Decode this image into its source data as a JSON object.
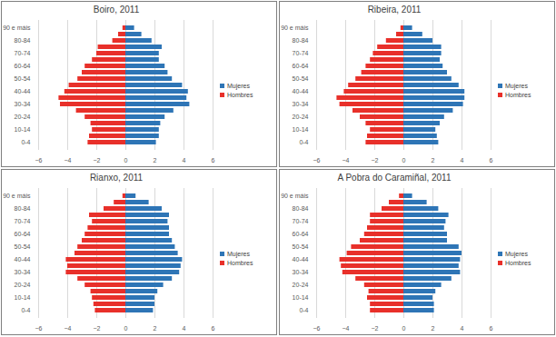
{
  "chart_data": [
    {
      "type": "bar",
      "title": "Boiro, 2011",
      "orientation": "horizontal",
      "grid": true,
      "legend": "right",
      "categories": [
        "0-4",
        null,
        "10-14",
        null,
        "20-24",
        null,
        "30-34",
        null,
        "40-44",
        null,
        "50-54",
        null,
        "60-64",
        null,
        "70-74",
        null,
        "80-84",
        null,
        "90 e máis"
      ],
      "series": [
        {
          "name": "Mujeres",
          "color": "#2e75b6",
          "values": [
            2.1,
            2.3,
            2.3,
            2.4,
            2.7,
            3.3,
            4.4,
            4.2,
            4.3,
            3.9,
            3.2,
            2.9,
            2.7,
            2.3,
            2.3,
            2.5,
            1.8,
            1.1,
            0.6
          ]
        },
        {
          "name": "Hombres",
          "color": "#e8302a",
          "values": [
            -2.6,
            -2.5,
            -2.3,
            -2.4,
            -2.8,
            -3.4,
            -4.5,
            -4.6,
            -4.2,
            -3.9,
            -3.3,
            -3.0,
            -2.8,
            -2.3,
            -2.0,
            -1.9,
            -0.9,
            -0.5,
            -0.2
          ]
        }
      ],
      "xlim": [
        -6,
        6
      ],
      "xticks": [
        -6,
        -4,
        -2,
        0,
        2,
        4,
        6
      ]
    },
    {
      "type": "bar",
      "title": "Ribeira, 2011",
      "orientation": "horizontal",
      "grid": true,
      "legend": "right",
      "categories": [
        "0-4",
        null,
        "10-14",
        null,
        "20-24",
        null,
        "30-34",
        null,
        "40-44",
        null,
        "50-54",
        null,
        "60-64",
        null,
        "70-74",
        null,
        "80-84",
        null,
        "90 e máis"
      ],
      "series": [
        {
          "name": "Mujeres",
          "color": "#2e75b6",
          "values": [
            2.4,
            2.3,
            2.2,
            2.5,
            2.8,
            3.4,
            4.1,
            4.2,
            4.2,
            3.8,
            3.3,
            3.0,
            2.7,
            2.5,
            2.6,
            2.6,
            2.0,
            1.3,
            0.6
          ]
        },
        {
          "name": "Hombres",
          "color": "#e8302a",
          "values": [
            -2.6,
            -2.5,
            -2.3,
            -2.6,
            -3.0,
            -3.5,
            -4.4,
            -4.6,
            -4.1,
            -3.8,
            -3.3,
            -2.9,
            -2.6,
            -2.3,
            -2.1,
            -1.8,
            -1.2,
            -0.5,
            -0.2
          ]
        }
      ],
      "xlim": [
        -6,
        6
      ],
      "xticks": [
        -6,
        -4,
        -2,
        0,
        2,
        4,
        6
      ]
    },
    {
      "type": "bar",
      "title": "Rianxo, 2011",
      "orientation": "horizontal",
      "grid": true,
      "legend": "right",
      "categories": [
        "0-4",
        null,
        "10-14",
        null,
        "20-24",
        null,
        "30-34",
        null,
        "40-44",
        null,
        "50-54",
        null,
        "60-64",
        null,
        "70-74",
        null,
        "80-84",
        null,
        "90 e máis"
      ],
      "series": [
        {
          "name": "Mujeres",
          "color": "#2e75b6",
          "values": [
            1.9,
            2.0,
            2.0,
            2.2,
            2.6,
            3.2,
            3.7,
            3.8,
            3.9,
            3.6,
            3.4,
            3.2,
            3.0,
            3.0,
            2.9,
            3.0,
            2.5,
            1.6,
            0.7
          ]
        },
        {
          "name": "Hombres",
          "color": "#e8302a",
          "values": [
            -2.1,
            -2.2,
            -2.3,
            -2.4,
            -2.8,
            -3.3,
            -4.1,
            -4.0,
            -4.1,
            -3.5,
            -3.3,
            -3.0,
            -2.8,
            -2.6,
            -2.3,
            -2.5,
            -1.5,
            -0.8,
            -0.2
          ]
        }
      ],
      "xlim": [
        -6,
        6
      ],
      "xticks": [
        -6,
        -4,
        -2,
        0,
        2,
        4,
        6
      ]
    },
    {
      "type": "bar",
      "title": "A Pobra do Caramiñal, 2011",
      "orientation": "horizontal",
      "grid": true,
      "legend": "right",
      "categories": [
        "0-4",
        null,
        "10-14",
        null,
        "20-24",
        null,
        "30-34",
        null,
        "40-44",
        null,
        "50-54",
        null,
        "60-64",
        null,
        "70-74",
        null,
        "80-84",
        null,
        "90 e máis"
      ],
      "series": [
        {
          "name": "Mujeres",
          "color": "#2e75b6",
          "values": [
            2.1,
            2.1,
            2.0,
            2.2,
            2.6,
            3.3,
            3.9,
            3.8,
            3.9,
            4.0,
            3.8,
            3.0,
            3.0,
            2.8,
            2.9,
            3.1,
            2.4,
            1.6,
            0.6
          ]
        },
        {
          "name": "Hombres",
          "color": "#e8302a",
          "values": [
            -2.3,
            -2.3,
            -2.5,
            -2.4,
            -2.7,
            -3.3,
            -4.2,
            -4.3,
            -4.4,
            -3.9,
            -3.6,
            -3.0,
            -2.7,
            -2.5,
            -2.3,
            -2.3,
            -1.5,
            -1.0,
            -0.3
          ]
        }
      ],
      "xlim": [
        -6,
        6
      ],
      "xticks": [
        -6,
        -4,
        -2,
        0,
        2,
        4,
        6
      ]
    }
  ]
}
